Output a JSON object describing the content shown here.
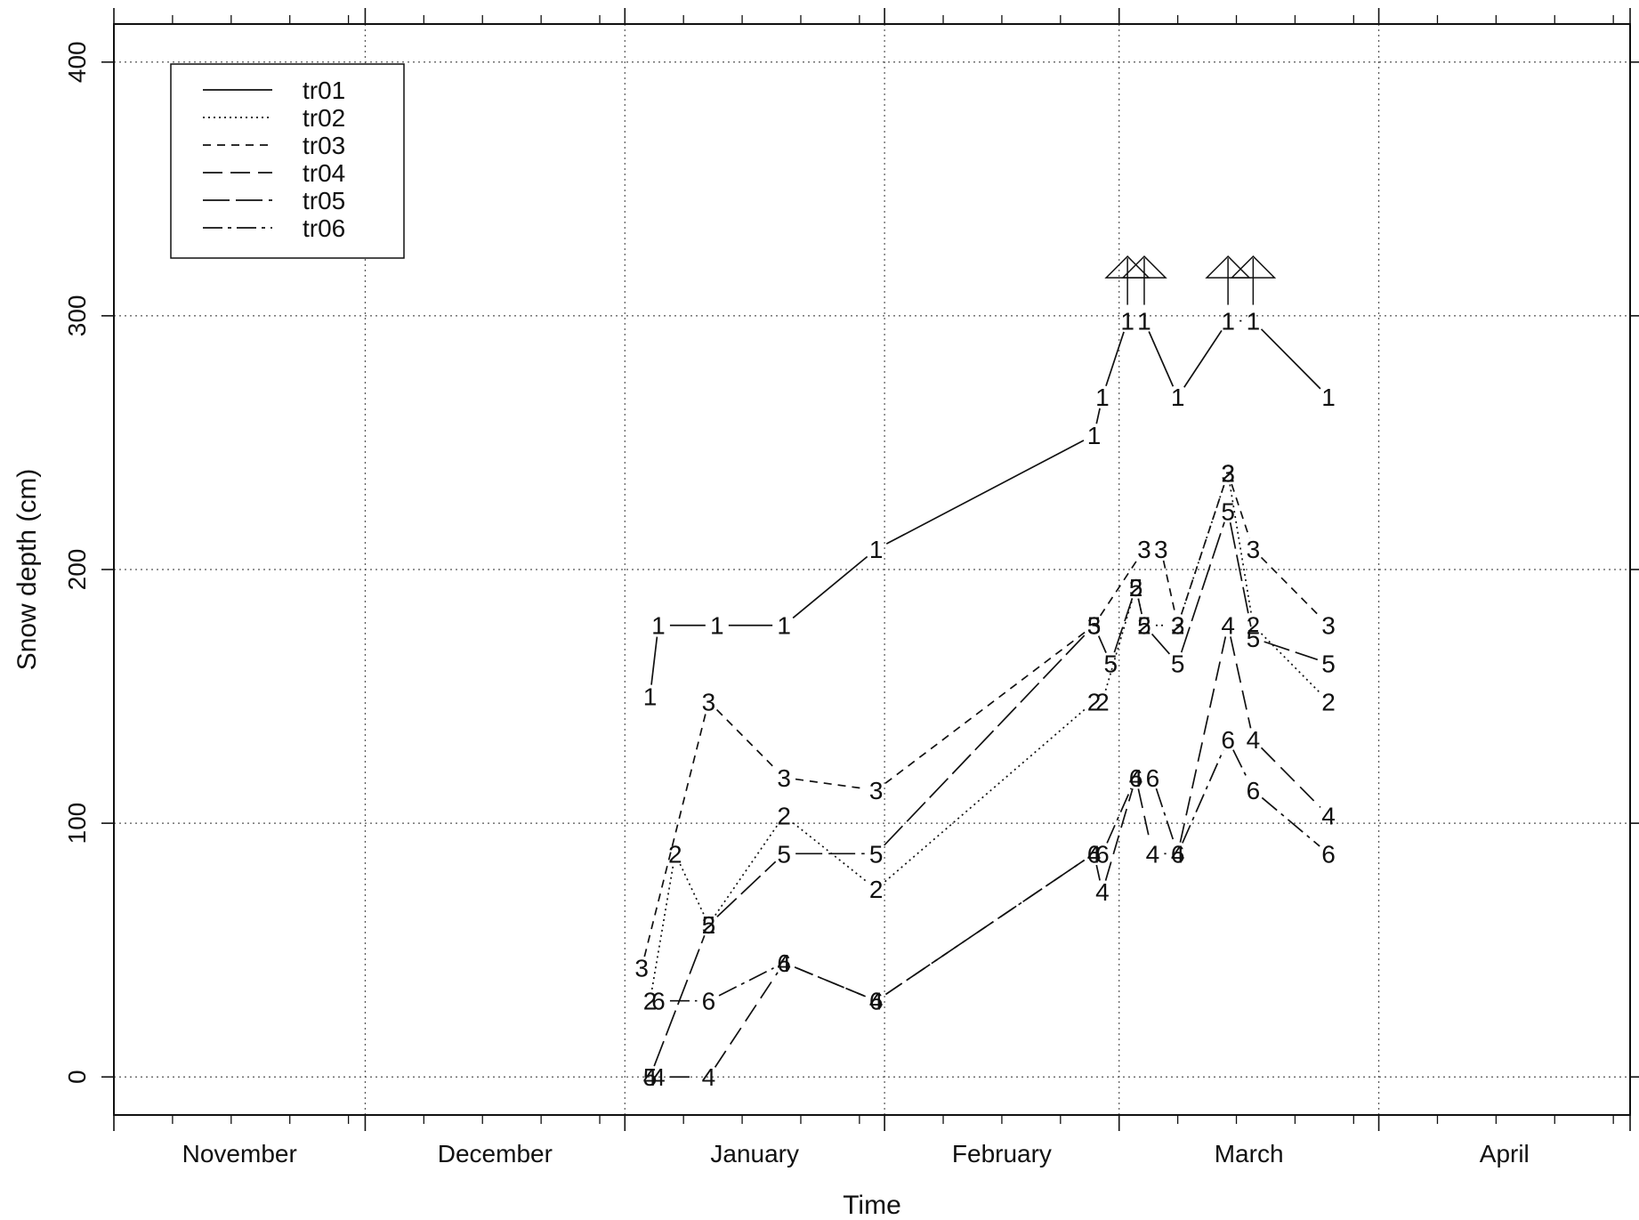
{
  "chart_data": {
    "type": "line",
    "xlabel": "Time",
    "ylabel": "Snow depth (cm)",
    "xlim": [
      "2008-11-01",
      "2009-04-30"
    ],
    "ylim": [
      -15,
      415
    ],
    "x_tick_labels": [
      "November",
      "December",
      "January",
      "February",
      "March",
      "April"
    ],
    "y_ticks": [
      0,
      100,
      200,
      300,
      400
    ],
    "grid": true,
    "legend_position": "top-left",
    "legend": [
      "tr01",
      "tr02",
      "tr03",
      "tr04",
      "tr05",
      "tr06"
    ],
    "series": [
      {
        "name": "tr01",
        "label": "1",
        "dash": "solid",
        "x": [
          "2009-01-04",
          "2009-01-05",
          "2009-01-12",
          "2009-01-20",
          "2009-01-31",
          "2009-02-26",
          "2009-02-27",
          "2009-03-02",
          "2009-03-04",
          "2009-03-08",
          "2009-03-14",
          "2009-03-17",
          "2009-03-26"
        ],
        "y": [
          150,
          178,
          178,
          178,
          208,
          253,
          268,
          298,
          298,
          268,
          298,
          298,
          268
        ]
      },
      {
        "name": "tr02",
        "label": "2",
        "dash": "dotted",
        "x": [
          "2009-01-04",
          "2009-01-07",
          "2009-01-11",
          "2009-01-20",
          "2009-01-31",
          "2009-02-26",
          "2009-02-27",
          "2009-03-03",
          "2009-03-04",
          "2009-03-08",
          "2009-03-14",
          "2009-03-17",
          "2009-03-26"
        ],
        "y": [
          30,
          88,
          60,
          103,
          74,
          148,
          148,
          193,
          178,
          178,
          238,
          178,
          148
        ]
      },
      {
        "name": "tr03",
        "label": "3",
        "dash": "short-dash",
        "x": [
          "2009-01-03",
          "2009-01-11",
          "2009-01-20",
          "2009-01-31",
          "2009-02-26",
          "2009-03-04",
          "2009-03-06",
          "2009-03-08",
          "2009-03-14",
          "2009-03-17",
          "2009-03-26"
        ],
        "y": [
          43,
          148,
          118,
          113,
          178,
          208,
          208,
          178,
          238,
          208,
          178
        ]
      },
      {
        "name": "tr04",
        "label": "4",
        "dash": "long-dash",
        "x": [
          "2009-01-04",
          "2009-01-05",
          "2009-01-11",
          "2009-01-20",
          "2009-01-31",
          "2009-02-26",
          "2009-02-27",
          "2009-03-03",
          "2009-03-05",
          "2009-03-08",
          "2009-03-14",
          "2009-03-17",
          "2009-03-26"
        ],
        "y": [
          0,
          0,
          0,
          45,
          30,
          88,
          73,
          118,
          88,
          88,
          178,
          133,
          103
        ]
      },
      {
        "name": "tr05",
        "label": "5",
        "dash": "long-dash-gap",
        "x": [
          "2009-01-04",
          "2009-01-11",
          "2009-01-20",
          "2009-01-31",
          "2009-02-26",
          "2009-02-28",
          "2009-03-03",
          "2009-03-04",
          "2009-03-08",
          "2009-03-14",
          "2009-03-17",
          "2009-03-26"
        ],
        "y": [
          0,
          60,
          88,
          88,
          178,
          163,
          193,
          178,
          163,
          223,
          173,
          163
        ]
      },
      {
        "name": "tr06",
        "label": "6",
        "dash": "dash-dot",
        "x": [
          "2009-01-05",
          "2009-01-11",
          "2009-01-20",
          "2009-01-31",
          "2009-02-26",
          "2009-02-27",
          "2009-03-03",
          "2009-03-05",
          "2009-03-08",
          "2009-03-14",
          "2009-03-17",
          "2009-03-26"
        ],
        "y": [
          30,
          30,
          45,
          30,
          88,
          88,
          118,
          118,
          88,
          133,
          113,
          88
        ]
      }
    ]
  }
}
